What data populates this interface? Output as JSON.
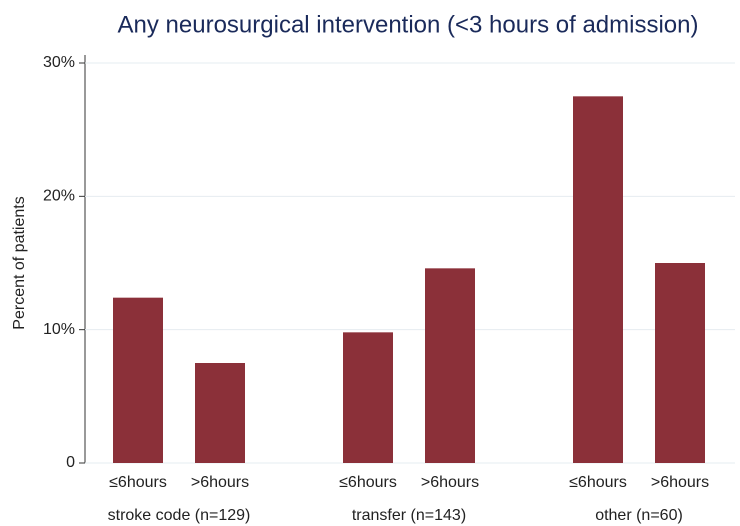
{
  "chart_data": {
    "type": "grouped_bar",
    "title": "Any neurosurgical intervention (<3 hours of admission)",
    "y_label": "Percent of patients",
    "color": "#8b3039",
    "groups": [
      {
        "name": "stroke code (n=129)",
        "categories": [
          "≤6hours",
          ">6hours"
        ],
        "values": [
          12.4,
          7.5
        ]
      },
      {
        "name": "transfer (n=143)",
        "categories": [
          "≤6hours",
          ">6hours"
        ],
        "values": [
          9.8,
          14.6
        ]
      },
      {
        "name": "other (n=60)",
        "categories": [
          "≤6hours",
          ">6hours"
        ],
        "values": [
          27.5,
          15.0
        ]
      }
    ],
    "ylim": [
      0,
      30
    ],
    "yticks": [
      0,
      {
        "value": 10,
        "label": "10%"
      },
      {
        "value": 20,
        "label": "20%"
      },
      {
        "value": 30,
        "label": "30%"
      }
    ],
    "grid": true
  }
}
